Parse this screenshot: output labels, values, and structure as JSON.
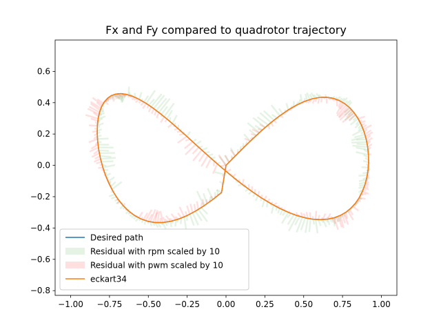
{
  "chart_data": {
    "type": "line",
    "title": "Fx and Fy compared to quadrotor trajectory",
    "xlabel": "",
    "ylabel": "",
    "xlim": [
      -1.1,
      1.1
    ],
    "ylim": [
      -0.83,
      0.8
    ],
    "x_ticks": [
      -1.0,
      -0.75,
      -0.5,
      -0.25,
      0.0,
      0.25,
      0.5,
      0.75,
      1.0
    ],
    "x_tick_labels": [
      "−1.00",
      "−0.75",
      "−0.50",
      "−0.25",
      "0.00",
      "0.25",
      "0.50",
      "0.75",
      "1.00"
    ],
    "y_ticks": [
      -0.8,
      -0.6,
      -0.4,
      -0.2,
      0.0,
      0.2,
      0.4,
      0.6
    ],
    "y_tick_labels": [
      "−0.8",
      "−0.6",
      "−0.4",
      "−0.2",
      "0.0",
      "0.2",
      "0.4",
      "0.6"
    ],
    "grid": false,
    "legend_position": "lower-left",
    "series": [
      {
        "name": "Desired path",
        "kind": "line",
        "color": "#1f77b4",
        "x": [
          0.0,
          0.0588,
          0.1174,
          0.1757,
          0.2334,
          0.2903,
          0.3462,
          0.4009,
          0.4541,
          0.5055,
          0.5549,
          0.6021,
          0.6468,
          0.6887,
          0.7277,
          0.7635,
          0.796,
          0.8249,
          0.8502,
          0.8716,
          0.8891,
          0.9025,
          0.9118,
          0.9168,
          0.9176,
          0.9141,
          0.9063,
          0.8943,
          0.878,
          0.8576,
          0.8332,
          0.8048,
          0.7726,
          0.7368,
          0.6975,
          0.655,
          0.6094,
          0.561,
          0.5101,
          0.4568,
          0.4016,
          0.3446,
          0.2862,
          0.2267,
          0.1664,
          0.1057,
          0.0448,
          -0.016,
          -0.0764,
          -0.1362,
          -0.195,
          -0.2526,
          -0.3088,
          -0.3632,
          -0.4157,
          -0.4659,
          -0.5136,
          -0.5587,
          -0.6009,
          -0.64,
          -0.6758,
          -0.7082,
          -0.737,
          -0.7621,
          -0.7833,
          -0.8006,
          -0.8139,
          -0.8231,
          -0.8282,
          -0.8292,
          -0.8261,
          -0.8189,
          -0.8078,
          -0.7928,
          -0.774,
          -0.7515,
          -0.7254,
          -0.6959,
          -0.6631,
          -0.6271,
          -0.5883,
          -0.5467,
          -0.5025,
          -0.456,
          -0.4074,
          -0.357,
          -0.3049,
          -0.2514,
          -0.1968,
          -0.1413,
          -0.0852,
          -0.0287,
          0.0
        ],
        "y": [
          0.0,
          0.059,
          0.117,
          0.1728,
          0.2254,
          0.2737,
          0.3168,
          0.354,
          0.3846,
          0.4083,
          0.4246,
          0.4333,
          0.4344,
          0.4281,
          0.4146,
          0.3943,
          0.3677,
          0.3355,
          0.2984,
          0.2572,
          0.2127,
          0.1657,
          0.117,
          0.0675,
          0.0179,
          -0.0311,
          -0.0788,
          -0.1244,
          -0.1672,
          -0.2066,
          -0.242,
          -0.2729,
          -0.2988,
          -0.3194,
          -0.3344,
          -0.3436,
          -0.3469,
          -0.3441,
          -0.3353,
          -0.3206,
          -0.3001,
          -0.2741,
          -0.2429,
          -0.2069,
          -0.1665,
          -0.1223,
          -0.0749,
          -0.0248,
          0.0271,
          0.0801,
          0.1331,
          0.1851,
          0.235,
          0.2818,
          0.3246,
          0.3626,
          0.395,
          0.4212,
          0.4407,
          0.453,
          0.458,
          0.4556,
          0.4459,
          0.429,
          0.4053,
          0.3752,
          0.3392,
          0.298,
          0.2523,
          0.2029,
          0.1506,
          0.0964,
          0.0413,
          -0.0138,
          -0.068,
          -0.1203,
          -0.1697,
          -0.2152,
          -0.256,
          -0.2912,
          -0.3202,
          -0.3425,
          -0.3575,
          -0.3651,
          -0.3652,
          -0.3577,
          -0.3429,
          -0.3211,
          -0.2927,
          -0.2583,
          -0.2185,
          -0.1741,
          0.0
        ]
      },
      {
        "name": "Residual with rpm scaled by 10",
        "kind": "quiver",
        "color": "#2ca02c",
        "alpha": 0.12
      },
      {
        "name": "Residual with pwm scaled by 10",
        "kind": "quiver",
        "color": "#ff0000",
        "alpha": 0.12
      },
      {
        "name": "eckart34",
        "kind": "line",
        "color": "#ff7f0e",
        "x": [
          0.0,
          0.0588,
          0.1174,
          0.1757,
          0.2334,
          0.2903,
          0.3462,
          0.4009,
          0.4541,
          0.5055,
          0.5549,
          0.6021,
          0.6468,
          0.6887,
          0.7277,
          0.7635,
          0.796,
          0.8249,
          0.8502,
          0.8716,
          0.8891,
          0.9025,
          0.9118,
          0.9168,
          0.9176,
          0.9141,
          0.9063,
          0.8943,
          0.878,
          0.8576,
          0.8332,
          0.8048,
          0.7726,
          0.7368,
          0.6975,
          0.655,
          0.6094,
          0.561,
          0.5101,
          0.4568,
          0.4016,
          0.3446,
          0.2862,
          0.2267,
          0.1664,
          0.1057,
          0.0448,
          -0.016,
          -0.0764,
          -0.1362,
          -0.195,
          -0.2526,
          -0.3088,
          -0.3632,
          -0.4157,
          -0.4659,
          -0.5136,
          -0.5587,
          -0.6009,
          -0.64,
          -0.6758,
          -0.7082,
          -0.737,
          -0.7621,
          -0.7833,
          -0.8006,
          -0.8139,
          -0.8231,
          -0.8282,
          -0.8292,
          -0.8261,
          -0.8189,
          -0.8078,
          -0.7928,
          -0.774,
          -0.7515,
          -0.7254,
          -0.6959,
          -0.6631,
          -0.6271,
          -0.5883,
          -0.5467,
          -0.5025,
          -0.456,
          -0.4074,
          -0.357,
          -0.3049,
          -0.2514,
          -0.1968,
          -0.1413,
          -0.0852,
          -0.0287,
          0.0
        ],
        "y": [
          0.0,
          0.059,
          0.117,
          0.1728,
          0.2254,
          0.2737,
          0.3168,
          0.354,
          0.3846,
          0.4083,
          0.4246,
          0.4333,
          0.4344,
          0.4281,
          0.4146,
          0.3943,
          0.3677,
          0.3355,
          0.2984,
          0.2572,
          0.2127,
          0.1657,
          0.117,
          0.0675,
          0.0179,
          -0.0311,
          -0.0788,
          -0.1244,
          -0.1672,
          -0.2066,
          -0.242,
          -0.2729,
          -0.2988,
          -0.3194,
          -0.3344,
          -0.3436,
          -0.3469,
          -0.3441,
          -0.3353,
          -0.3206,
          -0.3001,
          -0.2741,
          -0.2429,
          -0.2069,
          -0.1665,
          -0.1223,
          -0.0749,
          -0.0248,
          0.0271,
          0.0801,
          0.1331,
          0.1851,
          0.235,
          0.2818,
          0.3246,
          0.3626,
          0.395,
          0.4212,
          0.4407,
          0.453,
          0.458,
          0.4556,
          0.4459,
          0.429,
          0.4053,
          0.3752,
          0.3392,
          0.298,
          0.2523,
          0.2029,
          0.1506,
          0.0964,
          0.0413,
          -0.0138,
          -0.068,
          -0.1203,
          -0.1697,
          -0.2152,
          -0.256,
          -0.2912,
          -0.3202,
          -0.3425,
          -0.3575,
          -0.3651,
          -0.3652,
          -0.3577,
          -0.3429,
          -0.3211,
          -0.2927,
          -0.2583,
          -0.2185,
          -0.1741,
          0.0
        ]
      }
    ]
  }
}
